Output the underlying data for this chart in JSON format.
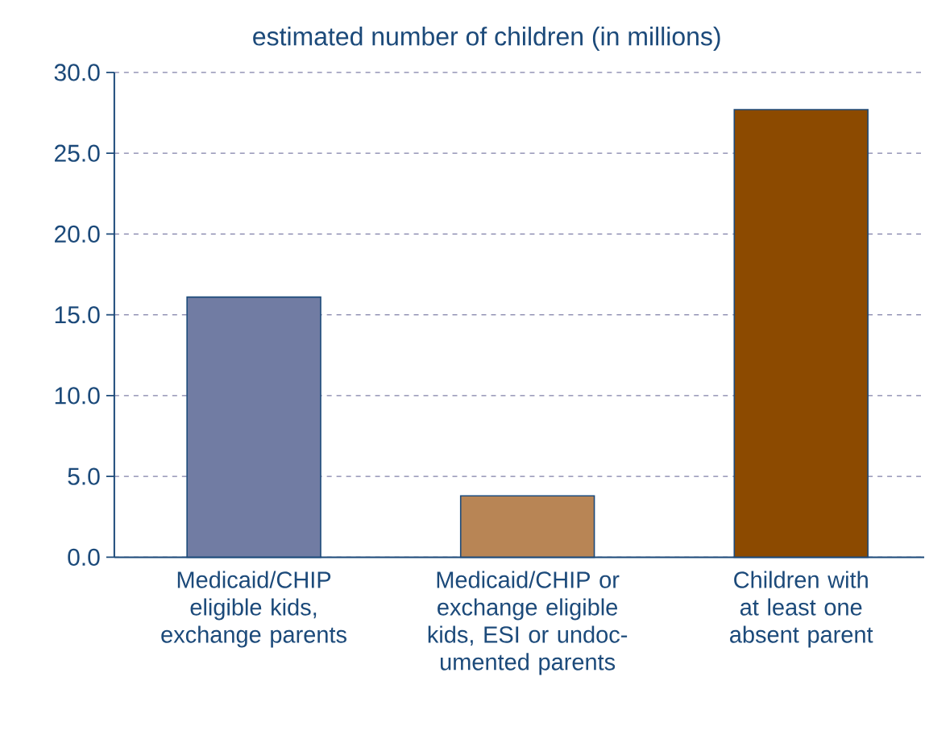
{
  "chart_data": {
    "type": "bar",
    "title": "estimated number of children (in millions)",
    "categories": [
      "Medicaid/CHIP eligible kids, exchange parents",
      "Medicaid/CHIP or exchange eligible kids, ESI or undoc-umented parents",
      "Children with at least one absent parent"
    ],
    "values": [
      16.1,
      3.8,
      27.7
    ],
    "colors": [
      "#717ca3",
      "#b88555",
      "#8c4a00"
    ],
    "ylim": [
      0,
      30
    ],
    "yticks": [
      {
        "value": 0,
        "label": "0.0"
      },
      {
        "value": 5,
        "label": "5.0"
      },
      {
        "value": 10,
        "label": "10.0"
      },
      {
        "value": 15,
        "label": "15.0"
      },
      {
        "value": 20,
        "label": "20.0"
      },
      {
        "value": 25,
        "label": "25.0"
      },
      {
        "value": 30,
        "label": "30.0"
      }
    ],
    "grid": "y"
  }
}
